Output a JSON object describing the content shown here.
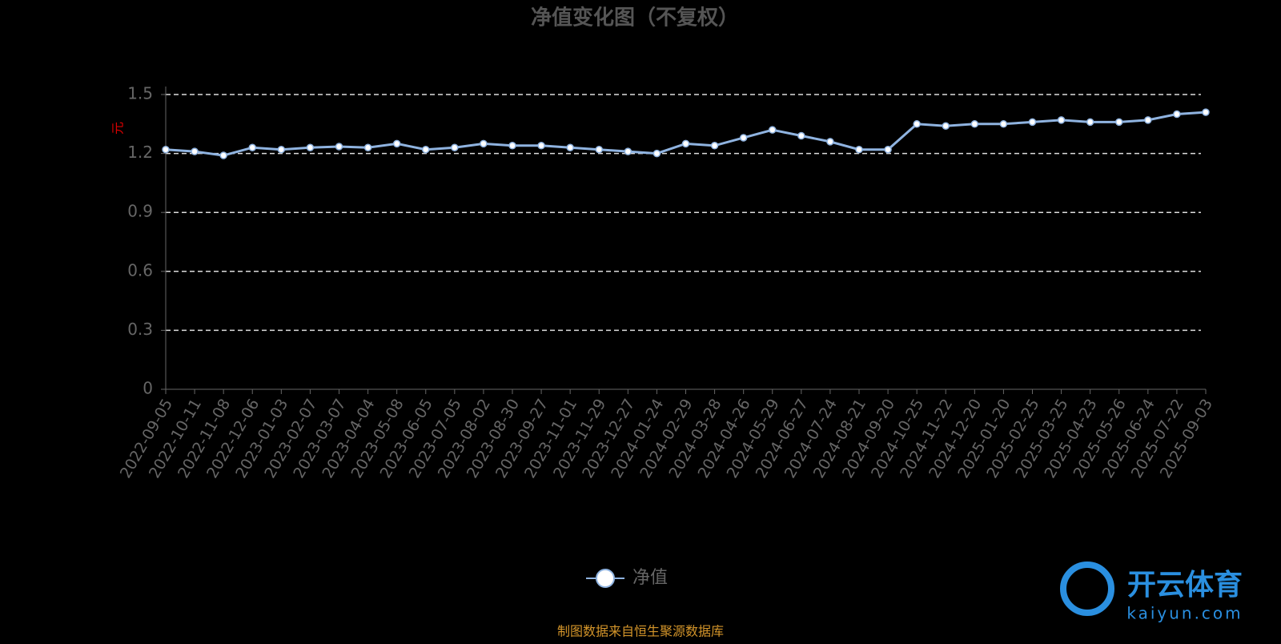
{
  "chart_data": {
    "type": "line",
    "title": "净值变化图（不复权）",
    "y_label": "元",
    "categories": [
      "2022-09-05",
      "2022-10-11",
      "2022-11-08",
      "2022-12-06",
      "2023-01-03",
      "2023-02-07",
      "2023-03-07",
      "2023-04-04",
      "2023-05-08",
      "2023-06-05",
      "2023-07-05",
      "2023-08-02",
      "2023-08-30",
      "2023-09-27",
      "2023-11-01",
      "2023-11-29",
      "2023-12-27",
      "2024-01-24",
      "2024-02-29",
      "2024-03-28",
      "2024-04-26",
      "2024-05-29",
      "2024-06-27",
      "2024-07-24",
      "2024-08-21",
      "2024-09-20",
      "2024-10-25",
      "2024-11-22",
      "2024-12-20",
      "2025-01-20",
      "2025-02-25",
      "2025-03-25",
      "2025-04-23",
      "2025-05-26",
      "2025-06-24",
      "2025-07-22",
      "2025-09-03"
    ],
    "series": [
      {
        "name": "净值",
        "color": "#8fb3e0",
        "values": [
          1.22,
          1.21,
          1.19,
          1.23,
          1.22,
          1.23,
          1.235,
          1.23,
          1.25,
          1.22,
          1.23,
          1.25,
          1.24,
          1.24,
          1.23,
          1.22,
          1.21,
          1.2,
          1.25,
          1.24,
          1.28,
          1.32,
          1.29,
          1.26,
          1.22,
          1.22,
          1.35,
          1.34,
          1.35,
          1.35,
          1.36,
          1.37,
          1.36,
          1.36,
          1.37,
          1.4,
          1.41
        ]
      }
    ],
    "ylim": [
      0,
      1.5
    ],
    "yticks": [
      0,
      0.3,
      0.6,
      0.9,
      1.2,
      1.5
    ],
    "grid": true,
    "source": "制图数据来自恒生聚源数据库",
    "watermark": {
      "name": "开云体育",
      "url": "kaiyun.com"
    }
  }
}
